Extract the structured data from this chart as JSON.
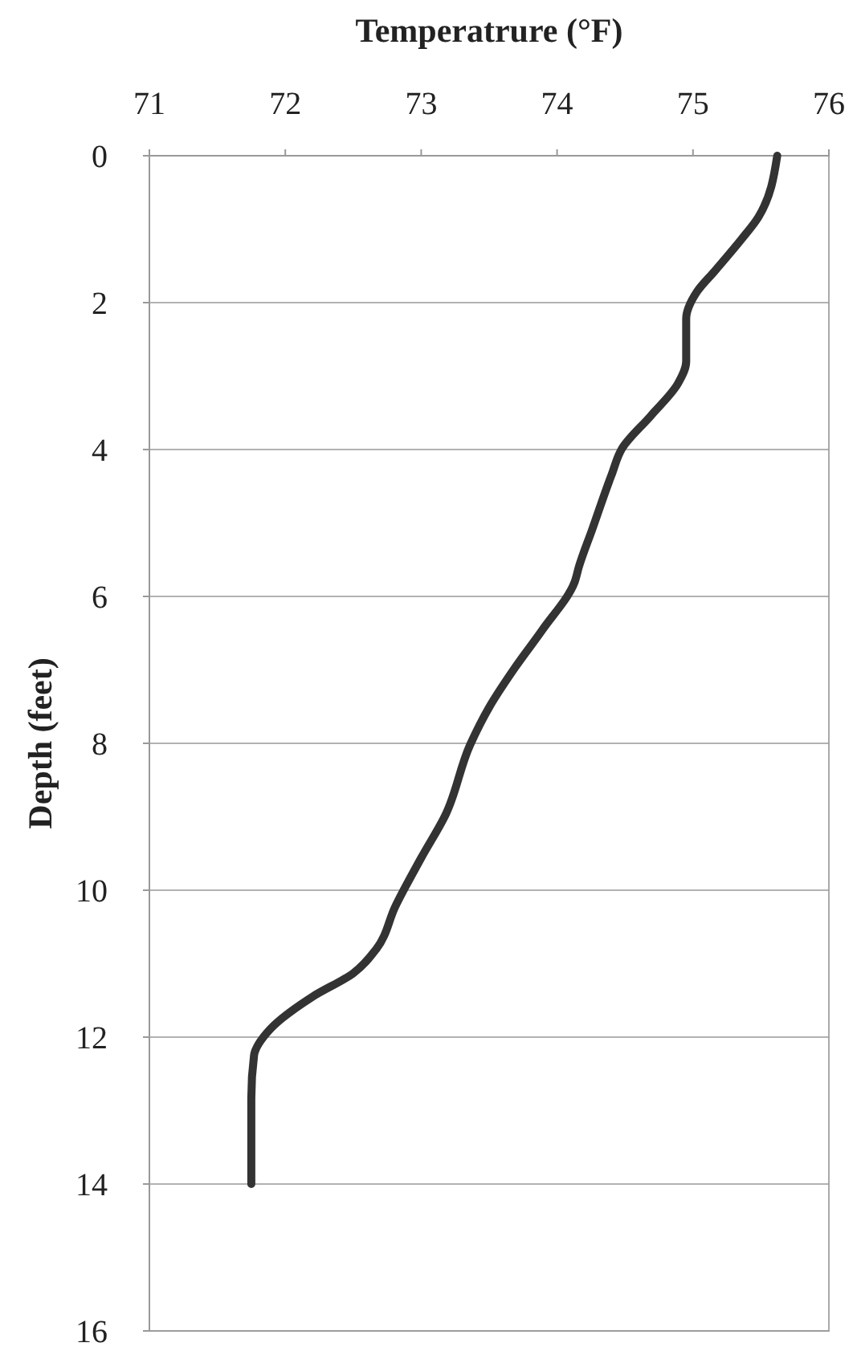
{
  "chart_data": {
    "type": "line",
    "xlabel": "Temperatrure (°F)",
    "ylabel": "Depth (feet)",
    "xlim": [
      71,
      76
    ],
    "xticks": [
      71,
      72,
      73,
      74,
      75,
      76
    ],
    "ylim": [
      16,
      0
    ],
    "yticks": [
      0,
      2,
      4,
      6,
      8,
      10,
      12,
      14,
      16
    ],
    "grid": "y",
    "marker": "none",
    "line_style": "solid",
    "series": [
      {
        "color": "#333333",
        "x": [
          75.62,
          75.48,
          75.36,
          75.16,
          75.03,
          74.95,
          74.95,
          74.89,
          74.69,
          74.48,
          74.4,
          74.26,
          74.16,
          74.13,
          73.89,
          73.69,
          73.5,
          73.36,
          73.18,
          73.0,
          72.81,
          72.67,
          72.5,
          72.2,
          71.89,
          71.77,
          71.75,
          71.75
        ],
        "values": [
          0,
          0.84,
          1.13,
          1.57,
          1.85,
          2.22,
          2.8,
          3.1,
          3.54,
          3.98,
          4.35,
          5.08,
          5.6,
          5.8,
          6.46,
          6.97,
          7.51,
          8.02,
          8.97,
          9.56,
          10.22,
          10.8,
          11.13,
          11.45,
          11.89,
          12.25,
          12.83,
          14.0
        ]
      }
    ]
  }
}
